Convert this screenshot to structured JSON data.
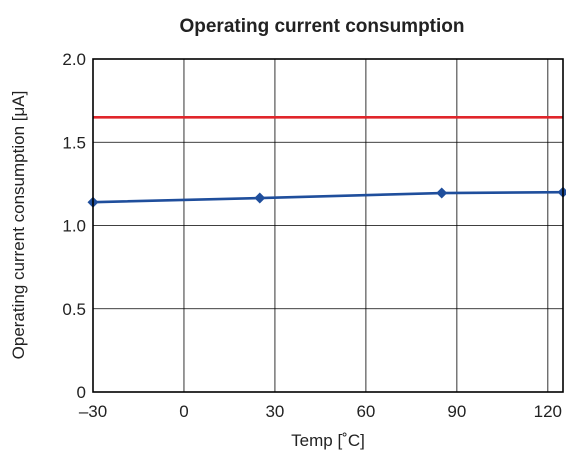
{
  "chart_data": {
    "type": "line",
    "title": "Operating current consumption",
    "xlabel": "Temp [˚C]",
    "ylabel": "Operating current consumption [μA]",
    "xlim": [
      -30,
      125
    ],
    "ylim": [
      0,
      2.0
    ],
    "x_ticks": [
      -30,
      0,
      30,
      60,
      90,
      120
    ],
    "x_tick_labels": [
      "–30",
      "0",
      "30",
      "60",
      "90",
      "120"
    ],
    "y_ticks": [
      0,
      0.5,
      1.0,
      1.5,
      2.0
    ],
    "y_tick_labels": [
      "0",
      "0.5",
      "1.0",
      "1.5",
      "2.0"
    ],
    "grid": true,
    "series": [
      {
        "color": "#1f4e9c",
        "marker": "diamond",
        "x": [
          -30,
          25,
          85,
          125
        ],
        "y": [
          1.14,
          1.165,
          1.195,
          1.2
        ]
      },
      {
        "color": "#e0262b",
        "marker": "none",
        "x": [
          -30,
          125
        ],
        "y": [
          1.65,
          1.65
        ]
      }
    ]
  }
}
